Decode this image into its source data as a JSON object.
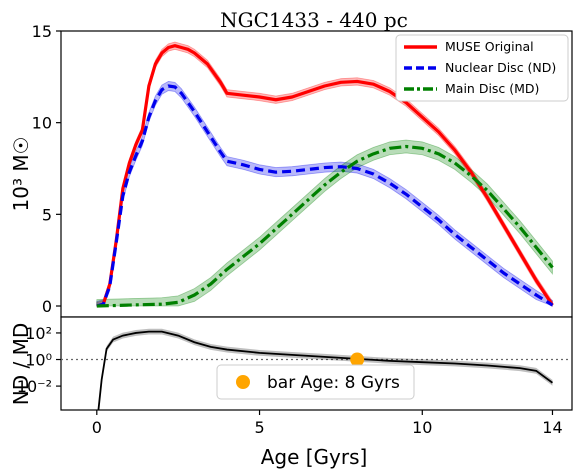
{
  "chart_data": [
    {
      "type": "line",
      "title": "NGC1433 - 440 pc",
      "xlabel": "",
      "ylabel": "10³ M☉",
      "xlim": [
        -1.1,
        14.6
      ],
      "ylim": [
        -0.6,
        15.0
      ],
      "yticks": [
        0,
        5,
        10,
        15
      ],
      "ytick_labels": [
        "0",
        "5",
        "10",
        "15"
      ],
      "legend": "top-right",
      "series": [
        {
          "name": "MUSE Original",
          "color": "#ff0000",
          "style": "solid",
          "band": 0.2,
          "x": [
            0,
            0.2,
            0.4,
            0.6,
            0.8,
            1.0,
            1.2,
            1.4,
            1.6,
            1.8,
            2.0,
            2.2,
            2.4,
            2.6,
            2.8,
            3.0,
            3.4,
            3.8,
            4.0,
            4.5,
            5.0,
            5.5,
            6.0,
            6.5,
            7.0,
            7.5,
            8.0,
            8.5,
            9.0,
            9.5,
            10.0,
            10.5,
            11.0,
            11.5,
            12.0,
            12.5,
            13.0,
            13.5,
            14.0
          ],
          "y": [
            0,
            0.1,
            1.2,
            3.6,
            6.4,
            7.8,
            8.8,
            9.6,
            12.0,
            13.2,
            13.8,
            14.1,
            14.2,
            14.1,
            14.0,
            13.8,
            13.2,
            12.2,
            11.6,
            11.5,
            11.4,
            11.25,
            11.4,
            11.7,
            12.0,
            12.2,
            12.25,
            12.1,
            11.7,
            11.1,
            10.3,
            9.5,
            8.5,
            7.3,
            5.9,
            4.4,
            2.9,
            1.4,
            0.05
          ]
        },
        {
          "name": "Nuclear Disc (ND)",
          "color": "#0000ee",
          "style": "dashed",
          "band": 0.25,
          "x": [
            0,
            0.2,
            0.4,
            0.6,
            0.8,
            1.0,
            1.2,
            1.4,
            1.6,
            1.8,
            2.0,
            2.2,
            2.4,
            2.6,
            2.8,
            3.0,
            3.4,
            3.8,
            4.0,
            4.5,
            5.0,
            5.5,
            6.0,
            6.5,
            7.0,
            7.5,
            8.0,
            8.5,
            9.0,
            9.5,
            10.0,
            10.5,
            11.0,
            11.5,
            12.0,
            12.5,
            13.0,
            13.5,
            14.0
          ],
          "y": [
            0,
            0.1,
            1.1,
            3.5,
            6.0,
            7.3,
            8.2,
            9.0,
            10.3,
            11.2,
            11.8,
            12.0,
            11.95,
            11.6,
            11.1,
            10.6,
            9.5,
            8.4,
            7.9,
            7.7,
            7.45,
            7.3,
            7.35,
            7.45,
            7.55,
            7.6,
            7.5,
            7.2,
            6.7,
            6.1,
            5.4,
            4.7,
            3.9,
            3.2,
            2.5,
            1.8,
            1.2,
            0.6,
            0.05
          ]
        },
        {
          "name": "Main Disc (MD)",
          "color": "#008000",
          "style": "dashdot",
          "band": 0.35,
          "x": [
            0,
            1.0,
            2.0,
            2.5,
            3.0,
            3.5,
            4.0,
            4.5,
            5.0,
            5.5,
            6.0,
            6.5,
            7.0,
            7.5,
            8.0,
            8.5,
            9.0,
            9.5,
            10.0,
            10.5,
            11.0,
            11.5,
            12.0,
            12.5,
            13.0,
            13.5,
            14.0
          ],
          "y": [
            0,
            0.05,
            0.1,
            0.2,
            0.6,
            1.2,
            2.0,
            2.7,
            3.4,
            4.2,
            5.0,
            5.8,
            6.6,
            7.3,
            7.9,
            8.3,
            8.6,
            8.7,
            8.6,
            8.3,
            7.8,
            7.1,
            6.3,
            5.3,
            4.3,
            3.2,
            2.1
          ]
        }
      ]
    },
    {
      "type": "line",
      "xlabel": "Age [Gyrs]",
      "ylabel": "ND / MD",
      "xlim": [
        -1.1,
        14.6
      ],
      "yscale": "log",
      "ylim_log10": [
        -3.8,
        3.2
      ],
      "xticks": [
        0,
        5,
        10,
        14
      ],
      "xtick_labels": [
        "0",
        "5",
        "10",
        "14"
      ],
      "yticks_log10": [
        2,
        0,
        -2
      ],
      "ytick_labels": [
        "10²",
        "10⁰",
        "10⁻²"
      ],
      "reference_line": 1,
      "legend": "bottom-center",
      "series": [
        {
          "name": "",
          "color": "#000000",
          "x": [
            0.05,
            0.15,
            0.3,
            0.5,
            0.8,
            1.2,
            1.6,
            2.0,
            2.5,
            3.0,
            3.5,
            4.0,
            5.0,
            6.0,
            7.0,
            8.0,
            9.0,
            10.0,
            11.0,
            12.0,
            13.0,
            13.5,
            14.0
          ],
          "log10_y": [
            -3.8,
            -1.5,
            0.8,
            1.5,
            1.8,
            2.0,
            2.1,
            2.1,
            1.8,
            1.3,
            0.95,
            0.75,
            0.5,
            0.35,
            0.2,
            0.05,
            -0.1,
            -0.2,
            -0.3,
            -0.45,
            -0.65,
            -0.85,
            -1.75
          ]
        }
      ],
      "marker": {
        "x": 8,
        "y": 1,
        "label": "bar Age: 8 Gyrs",
        "color": "#ffa500"
      }
    }
  ]
}
